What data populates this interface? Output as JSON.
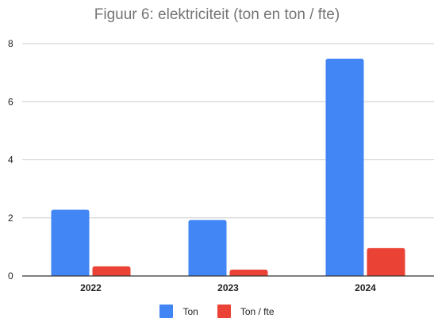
{
  "chart_data": {
    "type": "bar",
    "title": "Figuur 6: elektriciteit (ton en ton / fte)",
    "xlabel": "",
    "ylabel": "",
    "categories": [
      "2022",
      "2023",
      "2024"
    ],
    "series": [
      {
        "name": "Ton",
        "color": "#4285f4",
        "values": [
          2.28,
          1.93,
          7.48
        ]
      },
      {
        "name": "Ton / fte",
        "color": "#ea4335",
        "values": [
          0.33,
          0.22,
          0.96
        ]
      }
    ],
    "ylim": [
      0,
      8
    ],
    "yticks": [
      "0",
      "2",
      "4",
      "6",
      "8"
    ],
    "grid": true,
    "legend_position": "bottom"
  }
}
